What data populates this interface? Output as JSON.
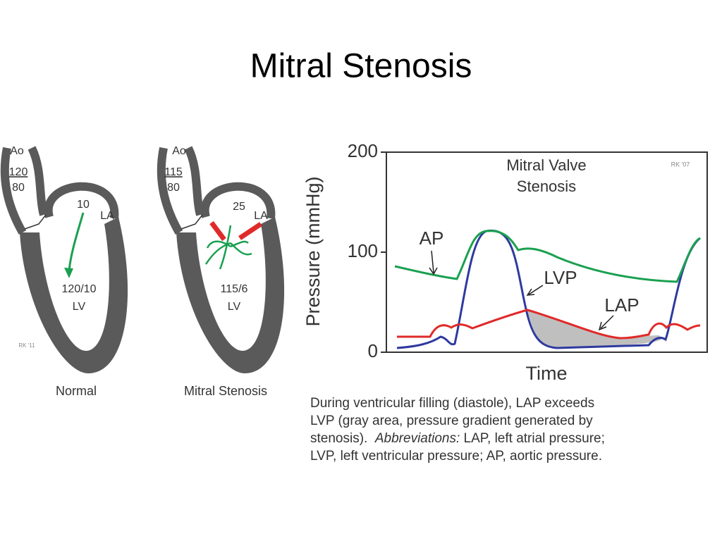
{
  "title": "Mitral Stenosis",
  "normal_heart": {
    "aorta": "Ao",
    "systolic": "120",
    "diastolic": "80",
    "la_pressure": "10",
    "la": "LA",
    "lv_pressure": "120/10",
    "lv": "LV",
    "signature": "RK '11",
    "caption": "Normal"
  },
  "stenosis_heart": {
    "aorta": "Ao",
    "systolic": "115",
    "diastolic": "80",
    "la_pressure": "25",
    "la": "LA",
    "lv_pressure": "115/6",
    "lv": "LV",
    "caption": "Mitral Stenosis"
  },
  "chart_data": {
    "type": "line",
    "title": [
      "Mitral Valve",
      "Stenosis"
    ],
    "signature": "RK '07",
    "y_label": "Pressure (mmHg)",
    "x_label": "Time",
    "ylim": [
      0,
      200
    ],
    "yticks": [
      0,
      100,
      200
    ],
    "annotations": [
      "AP",
      "LVP",
      "LAP"
    ]
  },
  "caption": {
    "line1": "During ventricular filling (diastole), LAP exceeds",
    "line2": "LVP (gray area, pressure gradient generated by",
    "line3a": "stenosis).  ",
    "line3b": "Abbreviations:",
    "line3c": " LAP, left atrial pressure;",
    "line4": "LVP, left ventricular pressure; AP, aortic pressure."
  }
}
